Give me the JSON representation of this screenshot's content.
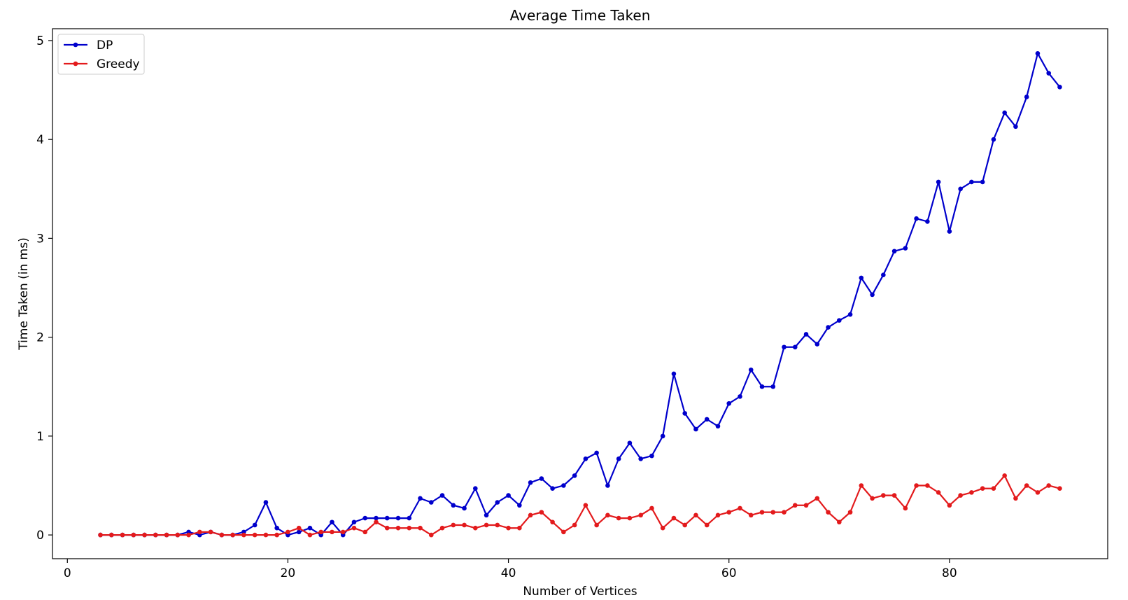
{
  "chart_data": {
    "type": "line",
    "title": "Average Time Taken",
    "xlabel": "Number of Vertices",
    "ylabel": "Time Taken (in ms)",
    "xlim": [
      -1.35,
      94.35
    ],
    "ylim": [
      -0.24,
      5.12
    ],
    "xticks": [
      0,
      20,
      40,
      60,
      80
    ],
    "xtick_labels": [
      "0",
      "20",
      "40",
      "60",
      "80"
    ],
    "yticks": [
      0,
      1,
      2,
      3,
      4,
      5
    ],
    "ytick_labels": [
      "0",
      "1",
      "2",
      "3",
      "4",
      "5"
    ],
    "grid": false,
    "legend_position": "top-left",
    "x": [
      3,
      4,
      5,
      6,
      7,
      8,
      9,
      10,
      11,
      12,
      13,
      14,
      15,
      16,
      17,
      18,
      19,
      20,
      21,
      22,
      23,
      24,
      25,
      26,
      27,
      28,
      29,
      30,
      31,
      32,
      33,
      34,
      35,
      36,
      37,
      38,
      39,
      40,
      41,
      42,
      43,
      44,
      45,
      46,
      47,
      48,
      49,
      50,
      51,
      52,
      53,
      54,
      55,
      56,
      57,
      58,
      59,
      60,
      61,
      62,
      63,
      64,
      65,
      66,
      67,
      68,
      69,
      70,
      71,
      72,
      73,
      74,
      75,
      76,
      77,
      78,
      79,
      80,
      81,
      82,
      83,
      84,
      85,
      86,
      87,
      88,
      89,
      90
    ],
    "series": [
      {
        "name": "DP",
        "color": "#0000cc",
        "values": [
          0,
          0,
          0,
          0,
          0,
          0,
          0,
          0,
          0.03,
          0,
          0.03,
          0,
          0,
          0.03,
          0.1,
          0.33,
          0.07,
          0,
          0.03,
          0.07,
          0,
          0.13,
          0,
          0.13,
          0.17,
          0.17,
          0.17,
          0.17,
          0.17,
          0.37,
          0.33,
          0.4,
          0.3,
          0.27,
          0.47,
          0.2,
          0.33,
          0.4,
          0.3,
          0.53,
          0.57,
          0.47,
          0.5,
          0.6,
          0.77,
          0.83,
          0.5,
          0.77,
          0.93,
          0.77,
          0.8,
          1.0,
          1.63,
          1.23,
          1.07,
          1.17,
          1.1,
          1.33,
          1.4,
          1.67,
          1.5,
          1.5,
          1.9,
          1.9,
          2.03,
          1.93,
          2.1,
          2.17,
          2.23,
          2.6,
          2.43,
          2.63,
          2.87,
          2.9,
          3.2,
          3.17,
          3.57,
          3.07,
          3.5,
          3.57,
          3.57,
          4.0,
          4.27,
          4.13,
          4.43,
          4.87,
          4.67,
          4.53
        ]
      },
      {
        "name": "Greedy",
        "color": "#e31a1c",
        "values": [
          0,
          0,
          0,
          0,
          0,
          0,
          0,
          0,
          0,
          0.03,
          0.03,
          0,
          0,
          0,
          0,
          0,
          0,
          0.03,
          0.07,
          0,
          0.03,
          0.03,
          0.03,
          0.07,
          0.03,
          0.13,
          0.07,
          0.07,
          0.07,
          0.07,
          0,
          0.07,
          0.1,
          0.1,
          0.07,
          0.1,
          0.1,
          0.07,
          0.07,
          0.2,
          0.23,
          0.13,
          0.03,
          0.1,
          0.3,
          0.1,
          0.2,
          0.17,
          0.17,
          0.2,
          0.27,
          0.07,
          0.17,
          0.1,
          0.2,
          0.1,
          0.2,
          0.23,
          0.27,
          0.2,
          0.23,
          0.23,
          0.23,
          0.3,
          0.3,
          0.37,
          0.23,
          0.13,
          0.23,
          0.5,
          0.37,
          0.4,
          0.4,
          0.27,
          0.5,
          0.5,
          0.43,
          0.3,
          0.4,
          0.43,
          0.47,
          0.47,
          0.6,
          0.37,
          0.5,
          0.43,
          0.5,
          0.47
        ]
      }
    ]
  }
}
